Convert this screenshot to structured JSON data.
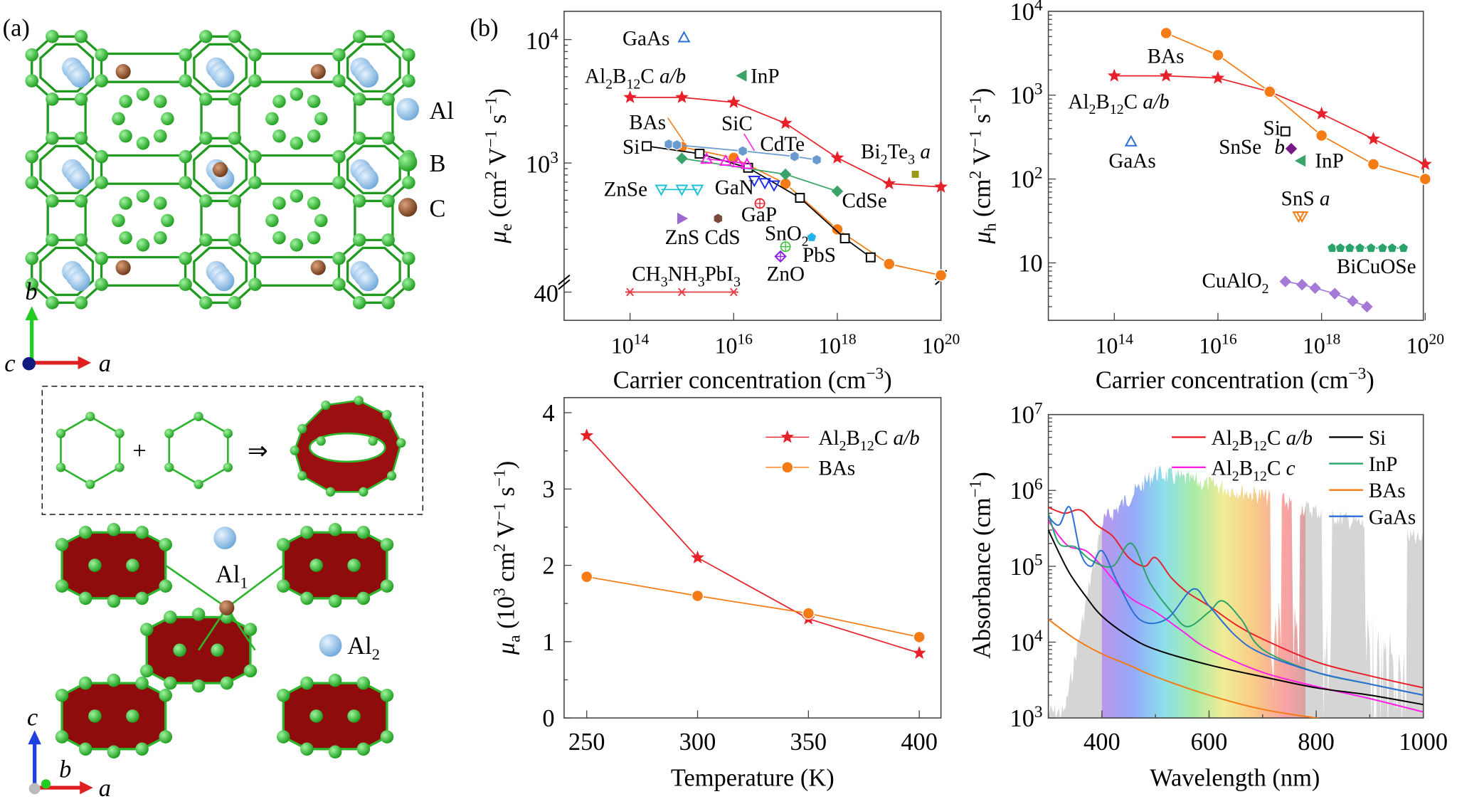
{
  "panel_labels": {
    "a": "(a)",
    "b": "(b)"
  },
  "structure": {
    "legend": [
      {
        "label": "Al",
        "color": "#8fc3ea"
      },
      {
        "label": "B",
        "color": "#2db52d"
      },
      {
        "label": "C",
        "color": "#8b4a22"
      }
    ],
    "axes_top": {
      "b": "b",
      "c": "c",
      "a": "a"
    },
    "axes_bottom": {
      "c": "c",
      "b": "b",
      "a": "a"
    },
    "inset_plus": "+",
    "inset_arrow": "⇒",
    "site_labels": {
      "al1": "Al",
      "al1_sub": "1",
      "al2": "Al",
      "al2_sub": "2"
    }
  },
  "chart_data": [
    {
      "type": "scatter",
      "id": "electron-mobility",
      "xlabel": "Carrier concentration (cm⁻³)",
      "ylabel": "μe (cm² V⁻¹ s⁻¹)",
      "xscale": "log",
      "yscale": "log",
      "xlim": [
        10000000000000.0,
        1e+20
      ],
      "ylim": [
        40,
        10000
      ],
      "x_ticks": [
        "10^14",
        "10^16",
        "10^18",
        "10^20"
      ],
      "y_ticks": [
        "10^4",
        "10^3",
        "40"
      ],
      "axis_break": true,
      "series": [
        {
          "name": "Al2B12C a/b",
          "color": "#e8202a",
          "marker": "star",
          "line": true,
          "x": [
            100000000000000.0,
            1000000000000000.0,
            1e+16,
            1e+17,
            1e+18,
            1e+19,
            1e+20
          ],
          "y": [
            3400,
            3400,
            3100,
            2100,
            1100,
            680,
            640
          ]
        },
        {
          "name": "BAs",
          "color": "#f57c14",
          "marker": "circle",
          "line": true,
          "x": [
            1000000000000000.0,
            1e+16,
            1e+17,
            1e+18,
            1e+19,
            1e+20
          ],
          "y": [
            1350,
            1100,
            680,
            290,
            152,
            123
          ]
        },
        {
          "name": "Si",
          "color": "#000000",
          "marker": "square",
          "line": true,
          "x": [
            210000000000000.0,
            2200000000000000.0,
            1.9e+16,
            1.9e+17,
            1.4e+18,
            4.4e+18
          ],
          "y": [
            1370,
            1190,
            915,
            522,
            245,
            172
          ]
        },
        {
          "name": "CdTe",
          "color": "#6a9bd0",
          "marker": "hexagon",
          "line": true,
          "x": [
            560000000000000.0,
            800000000000000.0,
            1.5e+16,
            1.5e+17,
            4e+17
          ],
          "y": [
            1420,
            1400,
            1250,
            1130,
            1060
          ]
        },
        {
          "name": "CdSe",
          "color": "#3aa36a",
          "marker": "diamond",
          "line": true,
          "x": [
            1000000000000000.0,
            1e+17,
            1e+18
          ],
          "y": [
            1090,
            810,
            590
          ]
        },
        {
          "name": "ZnSe",
          "color": "#1fc1d6",
          "marker": "triangle-down",
          "line": true,
          "x": [
            400000000000000.0,
            1000000000000000.0,
            2000000000000000.0
          ],
          "y": [
            610,
            610,
            610
          ]
        },
        {
          "name": "SiC",
          "color": "#ff1fe8",
          "marker": "triangle",
          "line": true,
          "x": [
            3000000000000000.0,
            7000000000000000.0,
            1.2e+16,
            1.8e+16
          ],
          "y": [
            1080,
            1040,
            1010,
            980
          ]
        },
        {
          "name": "GaN",
          "color": "#1f2fe8",
          "marker": "triangle-down",
          "line": false,
          "x": [
            2.5e+16,
            4e+16,
            6e+16
          ],
          "y": [
            720,
            690,
            660
          ]
        },
        {
          "name": "GaAs",
          "color": "#2a6fd6",
          "marker": "triangle",
          "line": false,
          "x": [
            1100000000000000.0
          ],
          "y": [
            10400
          ]
        },
        {
          "name": "InP",
          "color": "#3aa36a",
          "marker": "triangle-left",
          "line": false,
          "x": [
            1.45e+16
          ],
          "y": [
            5100
          ]
        },
        {
          "name": "GaP",
          "color": "#e8202a",
          "marker": "circle-plus",
          "line": false,
          "x": [
            3.2e+16
          ],
          "y": [
            470
          ]
        },
        {
          "name": "ZnS",
          "color": "#9b6ad0",
          "marker": "triangle-right",
          "line": false,
          "x": [
            1000000000000000.0
          ],
          "y": [
            355
          ]
        },
        {
          "name": "CdS",
          "color": "#7a4a3a",
          "marker": "hexagon",
          "line": false,
          "x": [
            5000000000000000.0
          ],
          "y": [
            355
          ]
        },
        {
          "name": "SnO2",
          "color": "#1fb4e8",
          "marker": "pentagon",
          "line": false,
          "x": [
            3.2e+17
          ],
          "y": [
            250
          ]
        },
        {
          "name": "PbS",
          "color": "#3cc43c",
          "marker": "circle-plus",
          "line": false,
          "x": [
            1e+17
          ],
          "y": [
            210
          ]
        },
        {
          "name": "ZnO",
          "color": "#8a1fe8",
          "marker": "diamond-plus",
          "line": false,
          "x": [
            8e+16
          ],
          "y": [
            175
          ]
        },
        {
          "name": "Bi2Te3 a",
          "color": "#9a9a1a",
          "marker": "square",
          "line": false,
          "x": [
            3.2e+19
          ],
          "y": [
            810
          ]
        },
        {
          "name": "CH3NH3PbI3",
          "color": "#e8404a",
          "marker": "asterisk",
          "line": true,
          "x": [
            100000000000000.0,
            1000000000000000.0,
            1e+16
          ],
          "y": [
            40,
            40,
            40
          ]
        }
      ],
      "labels": [
        "GaAs",
        "Al2B12C a/b",
        "InP",
        "BAs",
        "SiC",
        "CdTe",
        "Si",
        "Bi2Te3 a",
        "ZnSe",
        "GaN",
        "CdSe",
        "GaP",
        "ZnS",
        "CdS",
        "SnO2",
        "PbS",
        "ZnO",
        "CH3NH3PbI3"
      ]
    },
    {
      "type": "scatter",
      "id": "hole-mobility",
      "xlabel": "Carrier concentration (cm⁻³)",
      "ylabel": "μh (cm² V⁻¹ s⁻¹)",
      "xscale": "log",
      "yscale": "log",
      "xlim": [
        10000000000000.0,
        1e+20
      ],
      "ylim": [
        2,
        10000
      ],
      "x_ticks": [
        "10^14",
        "10^16",
        "10^18",
        "10^20"
      ],
      "y_ticks": [
        "10^4",
        "10^3",
        "10^2",
        "10"
      ],
      "series": [
        {
          "name": "Al2B12C a/b",
          "color": "#e8202a",
          "marker": "star",
          "line": true,
          "x": [
            100000000000000.0,
            1000000000000000.0,
            1e+16,
            1e+17,
            1e+18,
            1e+19,
            1e+20
          ],
          "y": [
            1700,
            1700,
            1600,
            1100,
            600,
            300,
            150
          ]
        },
        {
          "name": "BAs",
          "color": "#f57c14",
          "marker": "circle",
          "line": true,
          "x": [
            1000000000000000.0,
            1e+16,
            1e+17,
            1e+18,
            1e+19,
            1e+20
          ],
          "y": [
            5500,
            3000,
            1100,
            330,
            150,
            100
          ]
        },
        {
          "name": "GaAs",
          "color": "#2a6fd6",
          "marker": "triangle",
          "line": false,
          "x": [
            210000000000000.0
          ],
          "y": [
            280
          ]
        },
        {
          "name": "Si",
          "color": "#000000",
          "marker": "square",
          "line": false,
          "x": [
            2e+17
          ],
          "y": [
            370
          ]
        },
        {
          "name": "SnSe b",
          "color": "#7a1a8a",
          "marker": "diamond",
          "line": false,
          "x": [
            2.6e+17
          ],
          "y": [
            230
          ]
        },
        {
          "name": "InP",
          "color": "#3aa36a",
          "marker": "triangle-left",
          "line": false,
          "x": [
            4e+17
          ],
          "y": [
            165
          ]
        },
        {
          "name": "SnS a",
          "color": "#f57c14",
          "marker": "triangle-down",
          "line": false,
          "x": [
            3.6e+17,
            4.2e+17
          ],
          "y": [
            36,
            36
          ]
        },
        {
          "name": "BiCuOSe",
          "color": "#2aa36a",
          "marker": "pentagon",
          "line": true,
          "x": [
            1.6e+18,
            2.3e+18,
            3.5e+18,
            5.5e+18,
            9e+18,
            1.5e+19,
            2.3e+19,
            3.8e+19
          ],
          "y": [
            15,
            15,
            15,
            15,
            15,
            15,
            15,
            15
          ]
        },
        {
          "name": "CuAlO2",
          "color": "#a57ad6",
          "marker": "diamond",
          "line": true,
          "x": [
            2e+17,
            4.2e+17,
            7.5e+17,
            1.8e+18,
            4e+18,
            7.5e+18
          ],
          "y": [
            6,
            5.5,
            5,
            4.3,
            3.5,
            3
          ]
        }
      ],
      "labels": [
        "BAs",
        "Al2B12C a/b",
        "GaAs",
        "Si",
        "SnSe",
        "b",
        "InP",
        "SnS a",
        "BiCuOSe",
        "CuAlO2"
      ]
    },
    {
      "type": "line",
      "id": "average-mobility-vs-temperature",
      "xlabel": "Temperature (K)",
      "ylabel": "μa (10³ cm² V⁻¹ s⁻¹)",
      "xlim": [
        240,
        410
      ],
      "ylim": [
        0,
        4
      ],
      "x_ticks": [
        "250",
        "300",
        "350",
        "400"
      ],
      "y_ticks": [
        "0",
        "1",
        "2",
        "3",
        "4"
      ],
      "legend": "top-right",
      "series": [
        {
          "name": "Al2B12C a/b",
          "color": "#e8202a",
          "marker": "star",
          "x": [
            250,
            300,
            350,
            400
          ],
          "y": [
            3.7,
            2.1,
            1.3,
            0.85
          ]
        },
        {
          "name": "BAs",
          "color": "#f57c14",
          "marker": "circle",
          "x": [
            250,
            300,
            350,
            400
          ],
          "y": [
            1.85,
            1.6,
            1.37,
            1.06
          ]
        }
      ]
    },
    {
      "type": "line",
      "id": "absorbance-spectrum",
      "xlabel": "Wavelength (nm)",
      "ylabel": "Absorbance (cm⁻¹)",
      "yscale": "log",
      "xlim": [
        300,
        1000
      ],
      "ylim": [
        1000,
        10000000
      ],
      "x_ticks": [
        "400",
        "600",
        "800",
        "1000"
      ],
      "y_ticks": [
        "10^7",
        "10^6",
        "10^5",
        "10^4",
        "10^3"
      ],
      "legend": "top-right",
      "background": "solar spectrum (grey) with visible-range rainbow 400–780 nm",
      "series": [
        {
          "name": "Al2B12C a/b",
          "color": "#e8202a",
          "x": [
            300,
            330,
            360,
            390,
            420,
            450,
            480,
            500,
            530,
            560,
            600,
            650,
            700,
            800,
            900,
            1000
          ],
          "y": [
            600000,
            500000,
            550000,
            350000,
            250000,
            130000,
            100000,
            130000,
            70000,
            45000,
            30000,
            17000,
            11000,
            5500,
            3600,
            2500
          ]
        },
        {
          "name": "Al2B12C c",
          "color": "#ff1fe8",
          "x": [
            300,
            320,
            340,
            370,
            400,
            450,
            500,
            550,
            600,
            700,
            800,
            900,
            1000
          ],
          "y": [
            400000,
            250000,
            180000,
            160000,
            100000,
            40000,
            25000,
            14000,
            8000,
            4000,
            2600,
            1800,
            1200
          ]
        },
        {
          "name": "Si",
          "color": "#000000",
          "x": [
            300,
            320,
            340,
            370,
            400,
            450,
            500,
            600,
            700,
            800,
            900,
            1000
          ],
          "y": [
            300000,
            150000,
            80000,
            40000,
            22000,
            12000,
            8000,
            5000,
            3500,
            2500,
            2000,
            1500
          ]
        },
        {
          "name": "InP",
          "color": "#2aa36a",
          "x": [
            300,
            320,
            350,
            380,
            420,
            455,
            490,
            530,
            560,
            600,
            625,
            660,
            700,
            800,
            900,
            1000
          ],
          "y": [
            500000,
            200000,
            180000,
            120000,
            100000,
            200000,
            60000,
            25000,
            16000,
            25000,
            35000,
            20000,
            8000,
            4000,
            2800,
            2000
          ]
        },
        {
          "name": "BAs",
          "color": "#f57c14",
          "x": [
            300,
            350,
            400,
            450,
            500,
            600,
            700,
            800,
            850
          ],
          "y": [
            20000,
            11000,
            7000,
            5000,
            3500,
            2000,
            1300,
            1000,
            900
          ]
        },
        {
          "name": "GaAs",
          "color": "#2a6fd6",
          "x": [
            300,
            320,
            340,
            360,
            380,
            400,
            430,
            470,
            520,
            570,
            600,
            650,
            700,
            800,
            900,
            1000
          ],
          "y": [
            450000,
            350000,
            600000,
            150000,
            100000,
            160000,
            60000,
            20000,
            20000,
            50000,
            30000,
            12000,
            7000,
            4000,
            2800,
            2000
          ]
        }
      ]
    }
  ]
}
